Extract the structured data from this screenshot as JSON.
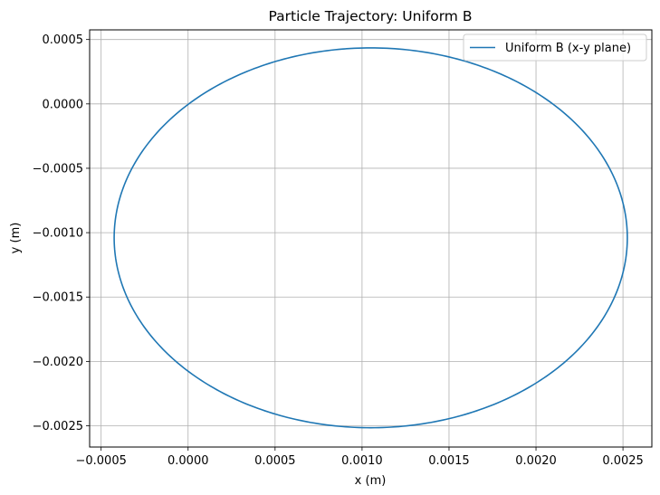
{
  "chart_data": {
    "type": "line",
    "title": "Particle Trajectory: Uniform B",
    "xlabel": "x (m)",
    "ylabel": "y (m)",
    "xlim": [
      -0.000566,
      0.002666
    ],
    "ylim": [
      -0.002665,
      0.000575
    ],
    "xticks": [
      -0.0005,
      0.0,
      0.0005,
      0.001,
      0.0015,
      0.002,
      0.0025
    ],
    "xtick_labels": [
      "−0.0005",
      "0.0000",
      "0.0005",
      "0.0010",
      "0.0015",
      "0.0020",
      "0.0025"
    ],
    "yticks": [
      0.0005,
      0.0,
      -0.0005,
      -0.001,
      -0.0015,
      -0.002,
      -0.0025
    ],
    "ytick_labels": [
      "0.0005",
      "0.0000",
      "−0.0005",
      "−0.0010",
      "−0.0015",
      "−0.0020",
      "−0.0025"
    ],
    "grid": true,
    "legend_position": "top-right",
    "series": [
      {
        "name": "Uniform B (x-y plane)",
        "color": "#1f77b4",
        "shape": "circle",
        "center": [
          0.00105,
          -0.00104
        ],
        "radius": 0.001475
      }
    ]
  }
}
